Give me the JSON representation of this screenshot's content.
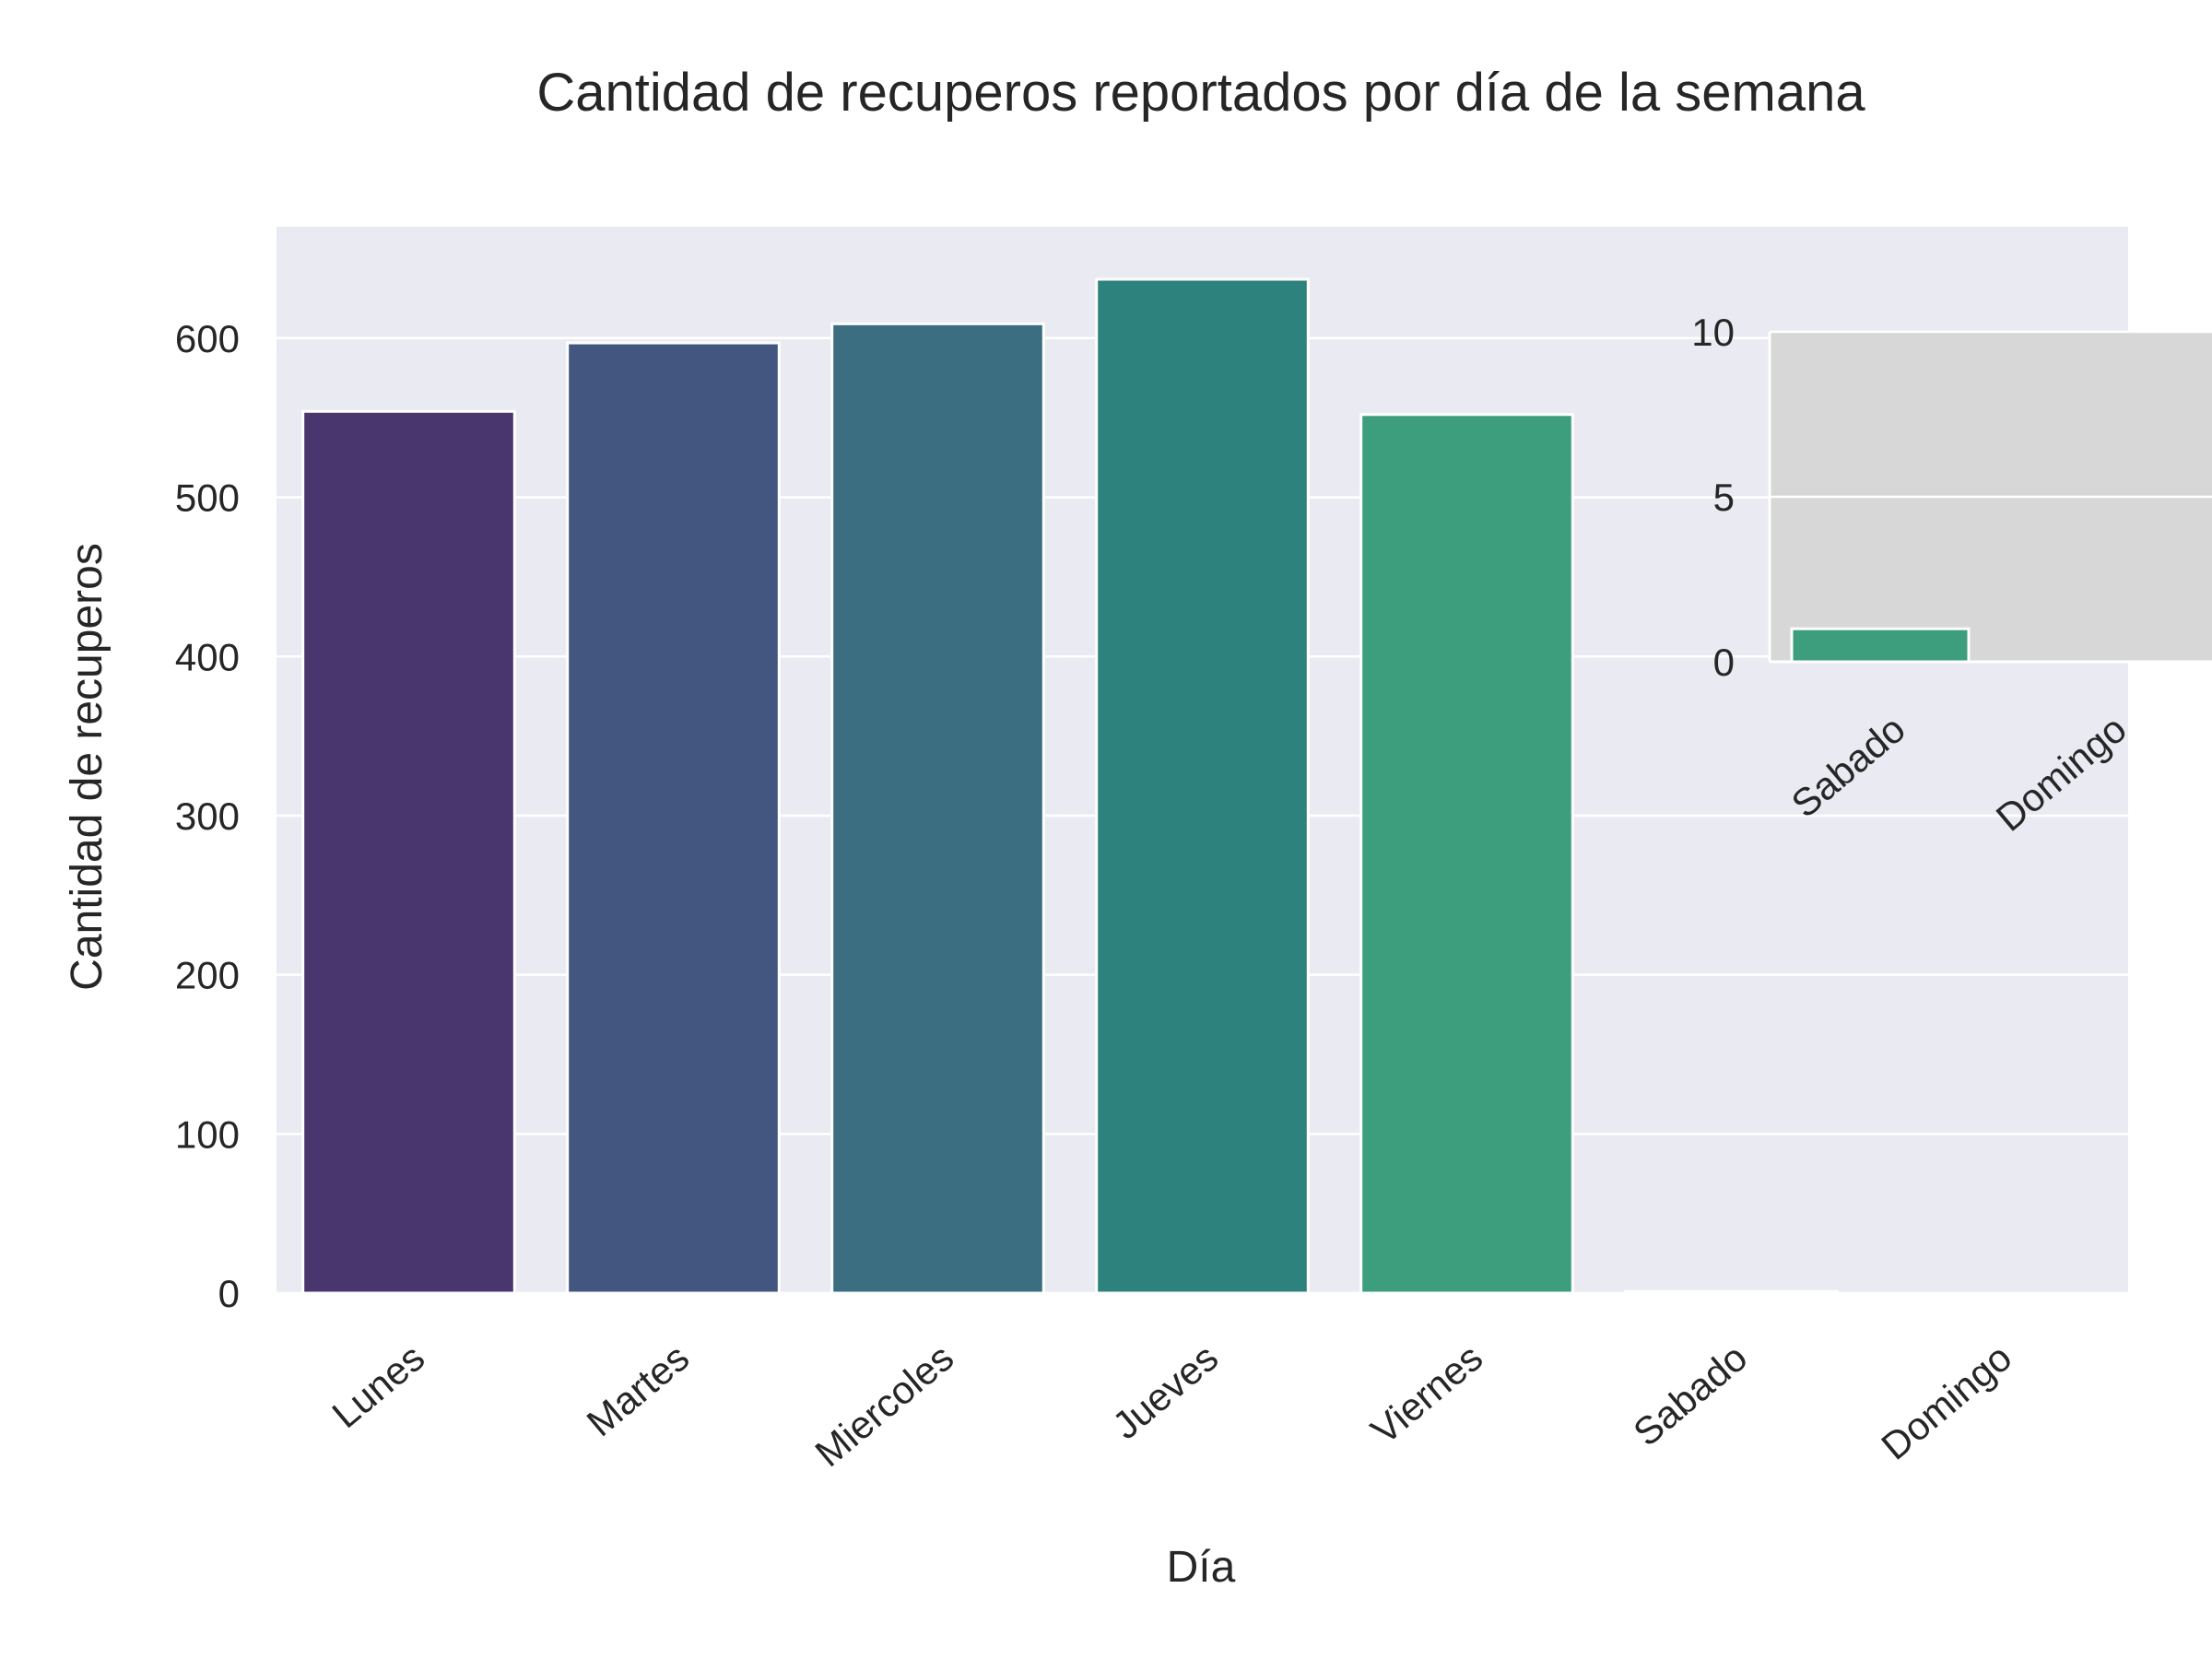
{
  "chart_data": [
    {
      "type": "bar",
      "title": "Cantidad de recuperos reportados por día de la semana",
      "xlabel": "Día",
      "ylabel": "Cantidad de recuperos",
      "categories": [
        "Lunes",
        "Martes",
        "Miercoles",
        "Jueves",
        "Viernes",
        "Sabado",
        "Domingo"
      ],
      "values": [
        554,
        597,
        609,
        637,
        552,
        1,
        0
      ],
      "colors": [
        "#4a366f",
        "#42567f",
        "#3a6e80",
        "#2e827d",
        "#3c9e7c",
        "#3c9e7c",
        "#3c9e7c"
      ],
      "ylim": [
        0,
        670
      ],
      "yticks": [
        0,
        100,
        200,
        300,
        400,
        500,
        600
      ],
      "grid": true,
      "background": "#eaeaf2"
    },
    {
      "type": "bar",
      "categories": [
        "Sabado",
        "Domingo"
      ],
      "values": [
        1,
        0
      ],
      "colors": [
        "#3c9e7c",
        "#3c9e7c"
      ],
      "ylim": [
        0,
        10
      ],
      "yticks": [
        0,
        5,
        10
      ],
      "grid": true,
      "background": "#d7d7d7"
    }
  ]
}
